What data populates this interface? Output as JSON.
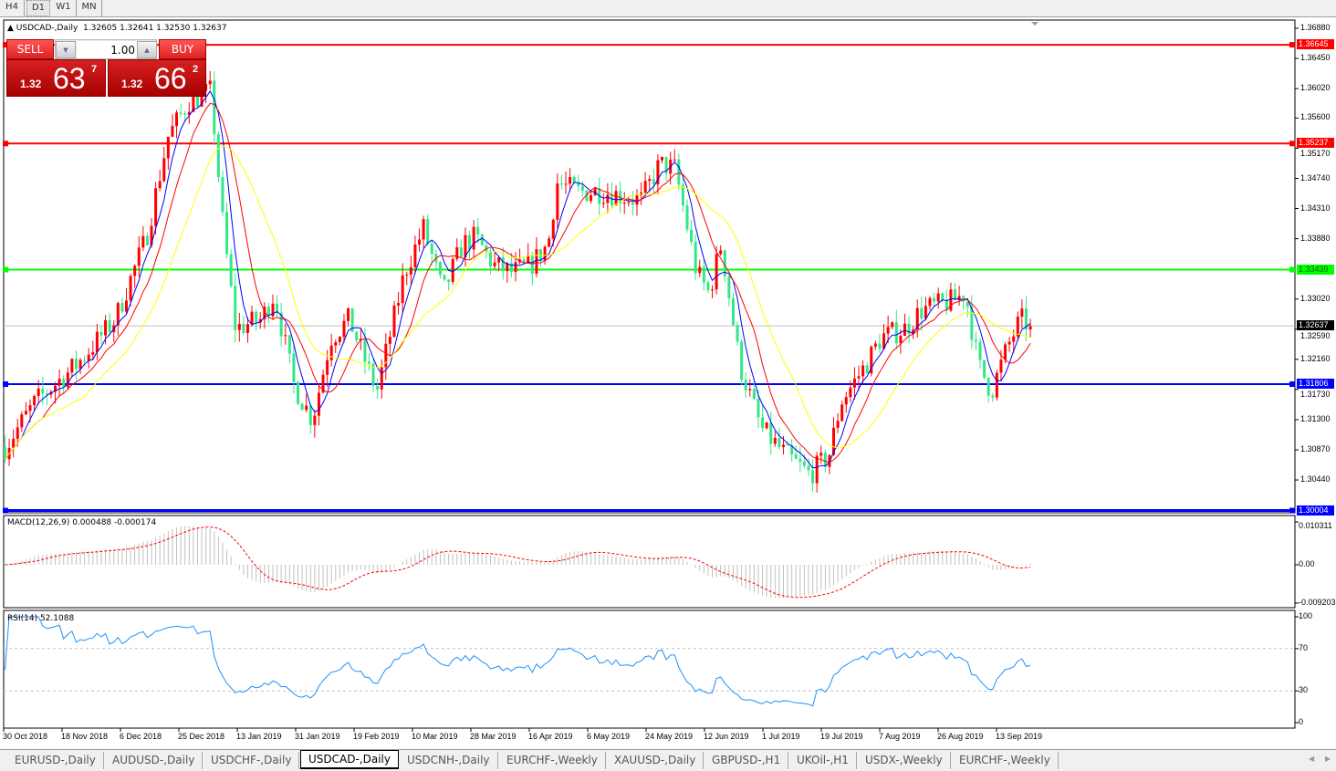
{
  "toolbar": {
    "timeframes": [
      {
        "label": "H4",
        "active": false
      },
      {
        "label": "D1",
        "active": true
      },
      {
        "label": "W1",
        "active": false
      },
      {
        "label": "MN",
        "active": false
      }
    ]
  },
  "chart": {
    "symbol_title": "USDCAD-,Daily",
    "ohlc": "1.32605 1.32641 1.32530 1.32637",
    "colors": {
      "bull": "#ff0000",
      "bear": "#33e68a",
      "ma_fast": "#0000ff",
      "ma_mid": "#ff0000",
      "ma_slow": "#ffff00",
      "grid_bg": "#ffffff"
    },
    "price_axis": [
      "1.36880",
      "1.36450",
      "1.36020",
      "1.35600",
      "1.35170",
      "1.34740",
      "1.34310",
      "1.33880",
      "1.33020",
      "1.32590",
      "1.32160",
      "1.31730",
      "1.31300",
      "1.30870",
      "1.30440"
    ],
    "price_range": [
      1.2997,
      1.37
    ],
    "current_price": "1.32637",
    "hlines": [
      {
        "price": "1.36645",
        "color": "#ff0000"
      },
      {
        "price": "1.35237",
        "color": "#ff0000"
      },
      {
        "price": "1.33439",
        "color": "#00ff00"
      },
      {
        "price": "1.31806",
        "color": "#0000ff"
      },
      {
        "price": "1.30004",
        "color": "#0000ff"
      }
    ],
    "time_axis": [
      {
        "label": "30 Oct 2018",
        "date": "2018-10-30"
      },
      {
        "label": "18 Nov 2018",
        "date": "2018-11-18"
      },
      {
        "label": "6 Dec 2018",
        "date": "2018-12-06"
      },
      {
        "label": "25 Dec 2018",
        "date": "2018-12-25"
      },
      {
        "label": "13 Jan 2019",
        "date": "2019-01-13"
      },
      {
        "label": "31 Jan 2019",
        "date": "2019-01-31"
      },
      {
        "label": "19 Feb 2019",
        "date": "2019-02-19"
      },
      {
        "label": "10 Mar 2019",
        "date": "2019-03-10"
      },
      {
        "label": "28 Mar 2019",
        "date": "2019-03-28"
      },
      {
        "label": "16 Apr 2019",
        "date": "2019-04-16"
      },
      {
        "label": "6 May 2019",
        "date": "2019-05-06"
      },
      {
        "label": "24 May 2019",
        "date": "2019-05-24"
      },
      {
        "label": "12 Jun 2019",
        "date": "2019-06-12"
      },
      {
        "label": "1 Jul 2019",
        "date": "2019-07-01"
      },
      {
        "label": "19 Jul 2019",
        "date": "2019-07-19"
      },
      {
        "label": "7 Aug 2019",
        "date": "2019-08-07"
      },
      {
        "label": "26 Aug 2019",
        "date": "2019-08-26"
      },
      {
        "label": "13 Sep 2019",
        "date": "2019-09-13"
      }
    ],
    "price_path": [
      [
        "2018-10-30",
        1.3091
      ],
      [
        "2018-11-09",
        1.3156
      ],
      [
        "2018-11-22",
        1.3208
      ],
      [
        "2018-12-04",
        1.3273
      ],
      [
        "2018-12-14",
        1.339
      ],
      [
        "2018-12-21",
        1.3533
      ],
      [
        "2018-12-28",
        1.3585
      ],
      [
        "2019-01-04",
        1.3598
      ],
      [
        "2019-01-08",
        1.3403
      ],
      [
        "2019-01-12",
        1.326
      ],
      [
        "2019-01-20",
        1.3273
      ],
      [
        "2019-01-24",
        1.331
      ],
      [
        "2019-01-30",
        1.318
      ],
      [
        "2019-02-05",
        1.313
      ],
      [
        "2019-02-11",
        1.3247
      ],
      [
        "2019-02-17",
        1.3273
      ],
      [
        "2019-02-26",
        1.317
      ],
      [
        "2019-03-07",
        1.334
      ],
      [
        "2019-03-13",
        1.3403
      ],
      [
        "2019-03-19",
        1.331
      ],
      [
        "2019-03-25",
        1.338
      ],
      [
        "2019-03-29",
        1.339
      ],
      [
        "2019-04-04",
        1.335
      ],
      [
        "2019-04-10",
        1.334
      ],
      [
        "2019-04-16",
        1.335
      ],
      [
        "2019-04-22",
        1.338
      ],
      [
        "2019-04-25",
        1.3468
      ],
      [
        "2019-05-02",
        1.3455
      ],
      [
        "2019-05-11",
        1.3455
      ],
      [
        "2019-05-22",
        1.3442
      ],
      [
        "2019-05-28",
        1.3494
      ],
      [
        "2019-06-02",
        1.3488
      ],
      [
        "2019-06-09",
        1.334
      ],
      [
        "2019-06-13",
        1.331
      ],
      [
        "2019-06-17",
        1.338
      ],
      [
        "2019-06-23",
        1.3208
      ],
      [
        "2019-06-30",
        1.3117
      ],
      [
        "2019-07-08",
        1.3078
      ],
      [
        "2019-07-15",
        1.3052
      ],
      [
        "2019-07-21",
        1.3078
      ],
      [
        "2019-07-25",
        1.3156
      ],
      [
        "2019-08-02",
        1.3208
      ],
      [
        "2019-08-07",
        1.3247
      ],
      [
        "2019-08-15",
        1.326
      ],
      [
        "2019-08-20",
        1.3286
      ],
      [
        "2019-08-30",
        1.3299
      ],
      [
        "2019-09-03",
        1.331
      ],
      [
        "2019-09-07",
        1.3208
      ],
      [
        "2019-09-11",
        1.317
      ],
      [
        "2019-09-16",
        1.3234
      ],
      [
        "2019-09-20",
        1.3273
      ],
      [
        "2019-09-23",
        1.32637
      ]
    ]
  },
  "trade_panel": {
    "sell_label": "SELL",
    "buy_label": "BUY",
    "lot": "1.00",
    "sell_price": {
      "prefix": "1.32",
      "big": "63",
      "sup": "7"
    },
    "buy_price": {
      "prefix": "1.32",
      "big": "66",
      "sup": "2"
    }
  },
  "macd": {
    "label": "MACD(12,26,9) 0.000488 -0.000174",
    "axis": [
      "0.010311",
      "0.00",
      "-0.009203"
    ],
    "range": [
      -0.009203,
      0.010311
    ],
    "colors": {
      "histogram": "#c0c0c0",
      "signal": "#ff0000"
    }
  },
  "rsi": {
    "label": "RSI(14) 52.1088",
    "axis": [
      "100",
      "70",
      "30",
      "0"
    ],
    "levels": [
      70,
      30
    ],
    "color": "#1e90ff"
  },
  "tabs": [
    {
      "label": "EURUSD-,Daily",
      "active": false
    },
    {
      "label": "AUDUSD-,Daily",
      "active": false
    },
    {
      "label": "USDCHF-,Daily",
      "active": false
    },
    {
      "label": "USDCAD-,Daily",
      "active": true
    },
    {
      "label": "USDCNH-,Daily",
      "active": false
    },
    {
      "label": "EURCHF-,Weekly",
      "active": false
    },
    {
      "label": "XAUUSD-,Daily",
      "active": false
    },
    {
      "label": "GBPUSD-,H1",
      "active": false
    },
    {
      "label": "UKOil-,H1",
      "active": false
    },
    {
      "label": "USDX-,Weekly",
      "active": false
    },
    {
      "label": "EURCHF-,Weekly",
      "active": false
    }
  ]
}
